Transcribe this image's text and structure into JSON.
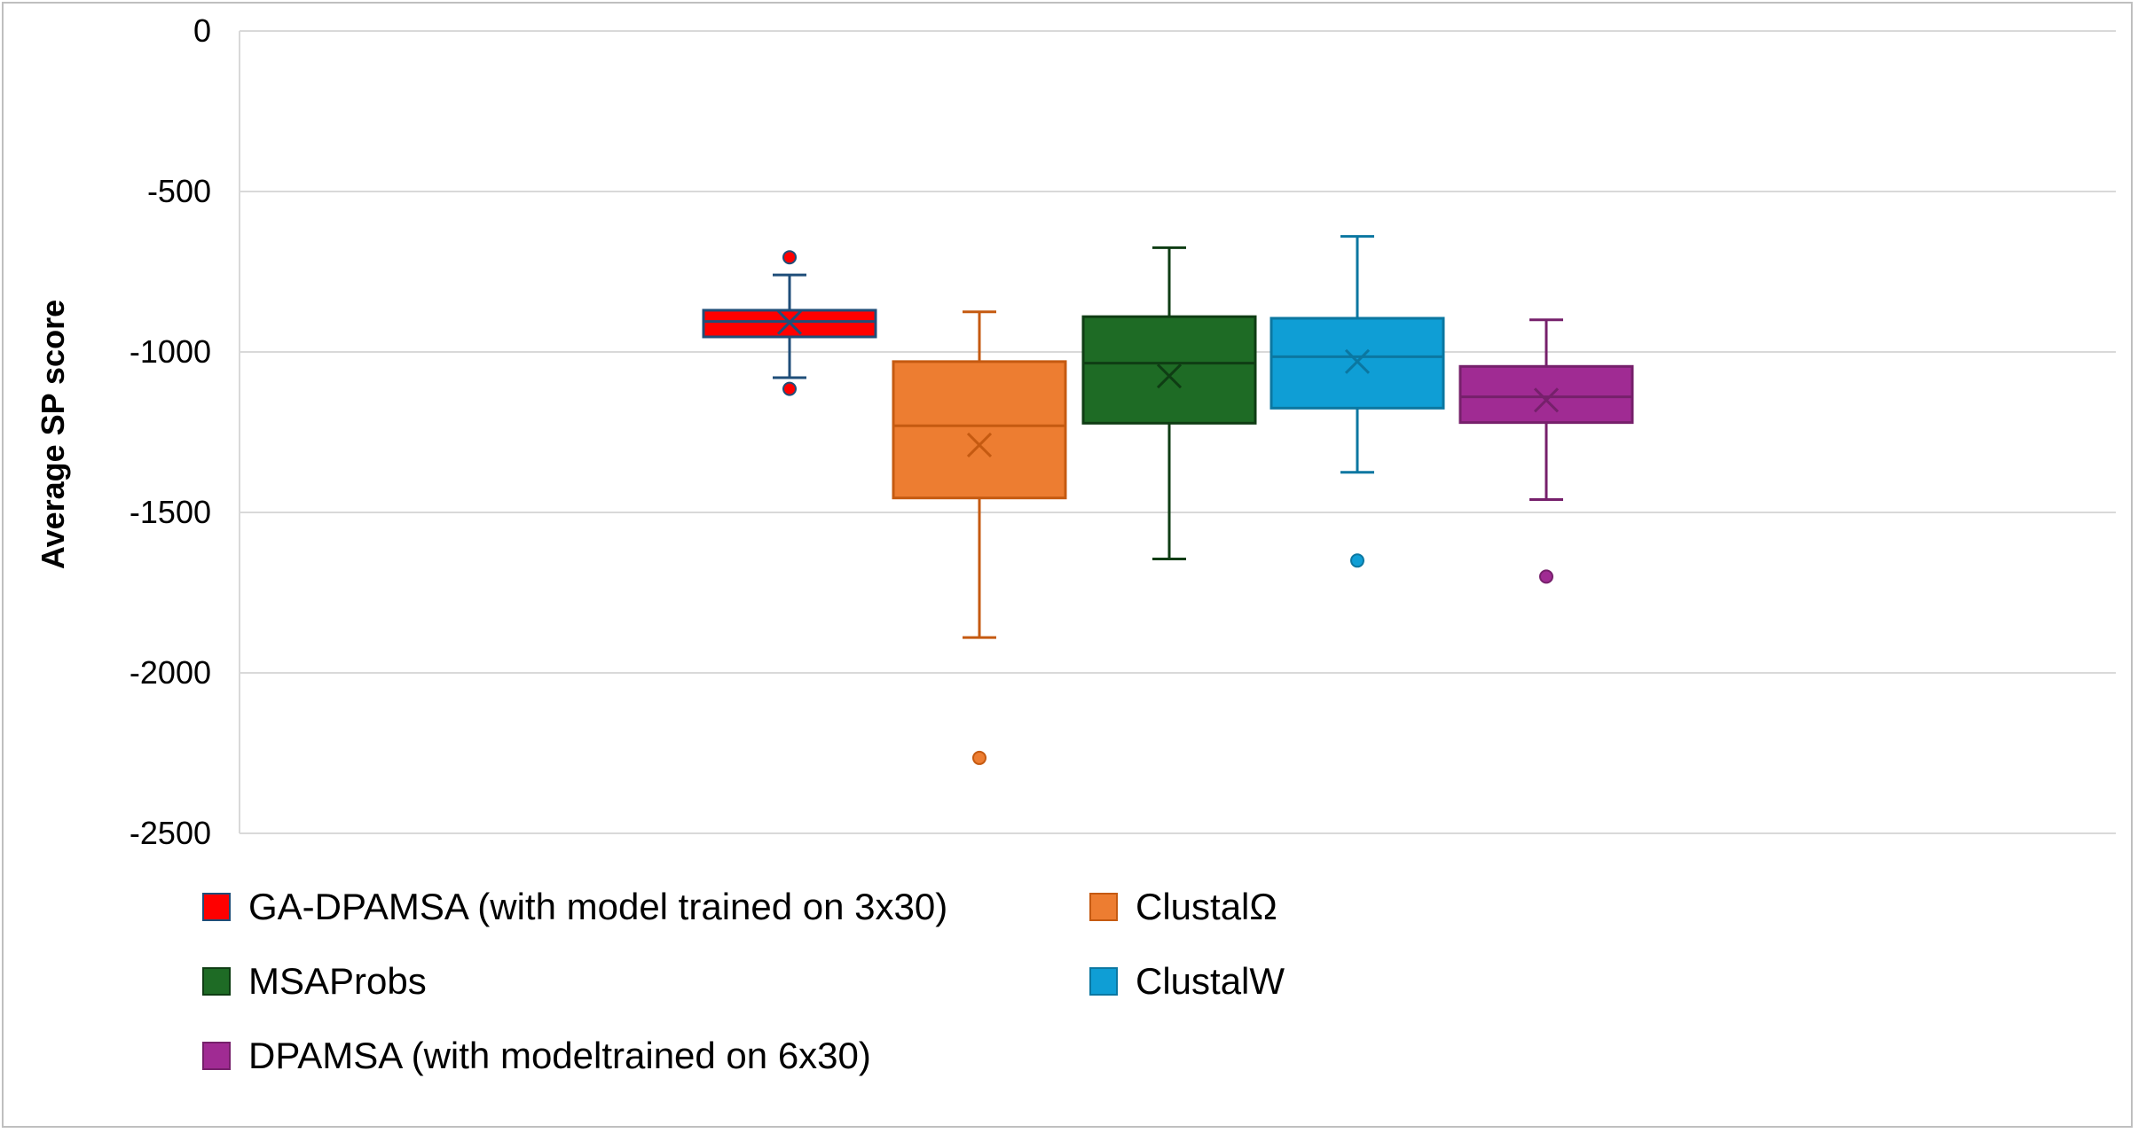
{
  "chart_data": {
    "type": "box",
    "title": "",
    "xlabel": "",
    "ylabel": "Average SP score",
    "ylim": [
      -2500,
      0
    ],
    "yticks": [
      0,
      -500,
      -1000,
      -1500,
      -2000,
      -2500
    ],
    "ytick_labels": [
      "0",
      "-500",
      "-1000",
      "-1500",
      "-2000",
      "-2500"
    ],
    "grid": true,
    "legend_position": "bottom",
    "series": [
      {
        "name": "GA-DPAMSA (with model trained on 3x30)",
        "fill": "#ff0000",
        "edge": "#1f4e79",
        "min": -1080,
        "q1": -953,
        "median": -905,
        "q3": -870,
        "max": -760,
        "mean": -908,
        "outliers": [
          -705,
          -1115
        ]
      },
      {
        "name": "ClustalΩ",
        "fill": "#ed7d31",
        "edge": "#c55a11",
        "min": -1890,
        "q1": -1455,
        "median": -1230,
        "q3": -1030,
        "max": -875,
        "mean": -1290,
        "outliers": [
          -2265
        ]
      },
      {
        "name": "MSAProbs",
        "fill": "#1e6b25",
        "edge": "#0f3d14",
        "min": -1645,
        "q1": -1222,
        "median": -1035,
        "q3": -890,
        "max": -675,
        "mean": -1075,
        "outliers": []
      },
      {
        "name": "ClustalW",
        "fill": "#0f9ed5",
        "edge": "#0b77a1",
        "min": -1375,
        "q1": -1175,
        "median": -1015,
        "q3": -895,
        "max": -640,
        "mean": -1030,
        "outliers": [
          -1650
        ]
      },
      {
        "name": "DPAMSA (with modeltrained on 6x30)",
        "fill": "#a02b93",
        "edge": "#76206b",
        "min": -1460,
        "q1": -1220,
        "median": -1140,
        "q3": -1045,
        "max": -900,
        "mean": -1150,
        "outliers": [
          -1700
        ]
      }
    ]
  }
}
